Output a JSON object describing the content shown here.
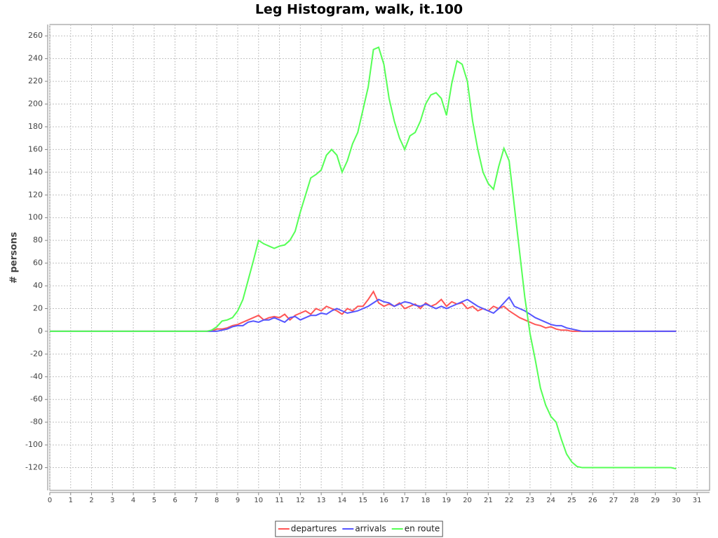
{
  "chart_data": {
    "type": "line",
    "title": "Leg Histogram, walk, it.100",
    "x_label": "time",
    "y_label": "# persons",
    "x": [
      0,
      0.25,
      0.5,
      0.75,
      1,
      1.25,
      1.5,
      1.75,
      2,
      2.25,
      2.5,
      2.75,
      3,
      3.25,
      3.5,
      3.75,
      4,
      4.25,
      4.5,
      4.75,
      5,
      5.25,
      5.5,
      5.75,
      6,
      6.25,
      6.5,
      6.75,
      7,
      7.25,
      7.5,
      7.75,
      8,
      8.25,
      8.5,
      8.75,
      9,
      9.25,
      9.5,
      9.75,
      10,
      10.25,
      10.5,
      10.75,
      11,
      11.25,
      11.5,
      11.75,
      12,
      12.25,
      12.5,
      12.75,
      13,
      13.25,
      13.5,
      13.75,
      14,
      14.25,
      14.5,
      14.75,
      15,
      15.25,
      15.5,
      15.75,
      16,
      16.25,
      16.5,
      16.75,
      17,
      17.25,
      17.5,
      17.75,
      18,
      18.25,
      18.5,
      18.75,
      19,
      19.25,
      19.5,
      19.75,
      20,
      20.25,
      20.5,
      20.75,
      21,
      21.25,
      21.5,
      21.75,
      22,
      22.25,
      22.5,
      22.75,
      23,
      23.25,
      23.5,
      23.75,
      24,
      24.25,
      24.5,
      24.75,
      25,
      25.25,
      25.5,
      25.75,
      26,
      26.25,
      26.5,
      26.75,
      27,
      27.25,
      27.5,
      27.75,
      28,
      28.25,
      28.5,
      28.75,
      29,
      29.25,
      29.5,
      29.75,
      30
    ],
    "series": [
      {
        "name": "departures",
        "color": "#ff5555",
        "values": [
          0,
          0,
          0,
          0,
          0,
          0,
          0,
          0,
          0,
          0,
          0,
          0,
          0,
          0,
          0,
          0,
          0,
          0,
          0,
          0,
          0,
          0,
          0,
          0,
          0,
          0,
          0,
          0,
          0,
          0,
          0,
          0,
          2,
          2,
          3,
          5,
          6,
          8,
          10,
          12,
          14,
          10,
          12,
          13,
          12,
          15,
          10,
          14,
          16,
          18,
          15,
          20,
          18,
          22,
          20,
          18,
          15,
          20,
          18,
          22,
          22,
          28,
          35,
          25,
          22,
          24,
          22,
          25,
          20,
          22,
          24,
          20,
          25,
          22,
          24,
          28,
          22,
          26,
          24,
          25,
          20,
          22,
          18,
          20,
          18,
          22,
          20,
          22,
          18,
          15,
          12,
          10,
          8,
          6,
          5,
          3,
          4,
          2,
          1,
          1,
          0,
          0,
          0,
          0,
          0,
          0,
          0,
          0,
          0,
          0,
          0,
          0,
          0,
          0,
          0,
          0,
          0,
          0,
          0,
          0,
          0
        ]
      },
      {
        "name": "arrivals",
        "color": "#5555ff",
        "values": [
          0,
          0,
          0,
          0,
          0,
          0,
          0,
          0,
          0,
          0,
          0,
          0,
          0,
          0,
          0,
          0,
          0,
          0,
          0,
          0,
          0,
          0,
          0,
          0,
          0,
          0,
          0,
          0,
          0,
          0,
          0,
          0,
          0,
          1,
          2,
          4,
          5,
          5,
          8,
          9,
          8,
          10,
          10,
          12,
          10,
          8,
          12,
          13,
          10,
          12,
          14,
          14,
          16,
          15,
          18,
          20,
          18,
          16,
          17,
          18,
          20,
          22,
          25,
          28,
          26,
          25,
          22,
          24,
          26,
          25,
          23,
          22,
          24,
          22,
          20,
          22,
          20,
          22,
          24,
          26,
          28,
          25,
          22,
          20,
          18,
          16,
          20,
          25,
          30,
          22,
          20,
          18,
          15,
          12,
          10,
          8,
          6,
          5,
          5,
          3,
          2,
          1,
          0,
          0,
          0,
          0,
          0,
          0,
          0,
          0,
          0,
          0,
          0,
          0,
          0,
          0,
          0,
          0,
          0,
          0,
          0
        ]
      },
      {
        "name": "en route",
        "color": "#55ff55",
        "values": [
          0,
          0,
          0,
          0,
          0,
          0,
          0,
          0,
          0,
          0,
          0,
          0,
          0,
          0,
          0,
          0,
          0,
          0,
          0,
          0,
          0,
          0,
          0,
          0,
          0,
          0,
          0,
          0,
          0,
          0,
          0,
          1,
          4,
          9,
          10,
          12,
          18,
          28,
          45,
          62,
          80,
          77,
          75,
          73,
          75,
          76,
          80,
          88,
          105,
          120,
          135,
          138,
          142,
          155,
          160,
          155,
          140,
          150,
          165,
          175,
          195,
          215,
          248,
          250,
          235,
          205,
          185,
          170,
          160,
          172,
          175,
          185,
          200,
          208,
          210,
          205,
          190,
          218,
          238,
          235,
          220,
          185,
          160,
          140,
          130,
          125,
          145,
          161,
          150,
          110,
          70,
          30,
          -2,
          -25,
          -50,
          -65,
          -75,
          -80,
          -95,
          -108,
          -115,
          -119,
          -120,
          -120,
          -120,
          -120,
          -120,
          -120,
          -120,
          -120,
          -120,
          -120,
          -120,
          -120,
          -120,
          -120,
          -120,
          -120,
          -120,
          -120,
          -121
        ]
      }
    ],
    "xlim": [
      0,
      31.6
    ],
    "ylim": [
      -140,
      270
    ],
    "xticks": [
      0,
      1,
      2,
      3,
      4,
      5,
      6,
      7,
      8,
      9,
      10,
      11,
      12,
      13,
      14,
      15,
      16,
      17,
      18,
      19,
      20,
      21,
      22,
      23,
      24,
      25,
      26,
      27,
      28,
      29,
      30,
      31
    ],
    "yticks": [
      -120,
      -100,
      -80,
      -60,
      -40,
      -20,
      0,
      20,
      40,
      60,
      80,
      100,
      120,
      140,
      160,
      180,
      200,
      220,
      240,
      260
    ],
    "grid": true,
    "legend": "bottom"
  }
}
